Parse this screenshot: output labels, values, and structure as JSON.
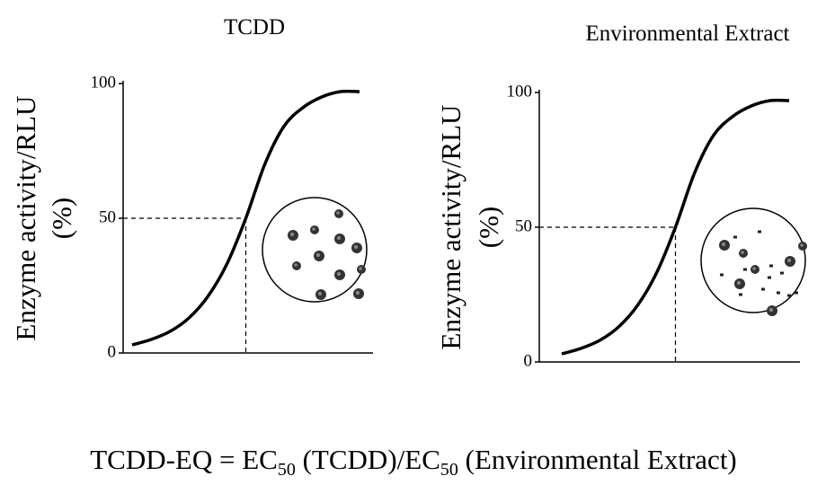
{
  "chart_data": [
    {
      "type": "line",
      "title": "TCDD",
      "ylabel": [
        "Enzyme activity/RLU",
        "(%)"
      ],
      "categories": [
        null,
        null,
        null,
        null,
        null,
        null,
        null,
        null,
        null,
        null,
        null,
        null,
        null
      ],
      "values": [
        3,
        5,
        8,
        13,
        21,
        33,
        50,
        70,
        84,
        91,
        95,
        97,
        97
      ],
      "color": "#000000",
      "ylim": [
        0,
        100
      ],
      "yticks": [
        0,
        50,
        100
      ]
    },
    {
      "type": "line",
      "title": "Environmental Extract",
      "ylabel": [
        "Enzyme activity/RLU",
        "(%)"
      ],
      "categories": [
        null,
        null,
        null,
        null,
        null,
        null,
        null,
        null,
        null,
        null,
        null,
        null,
        null
      ],
      "values": [
        3,
        5,
        8,
        13,
        21,
        33,
        50,
        70,
        84,
        91,
        95,
        97,
        97
      ],
      "color": "#000000",
      "ylim": [
        0,
        100
      ],
      "yticks": [
        0,
        50,
        100
      ]
    }
  ],
  "formula": [
    "TCDD-EQ = EC",
    "50",
    " (TCDD)/EC",
    "50",
    " (Environmental Extract)"
  ]
}
